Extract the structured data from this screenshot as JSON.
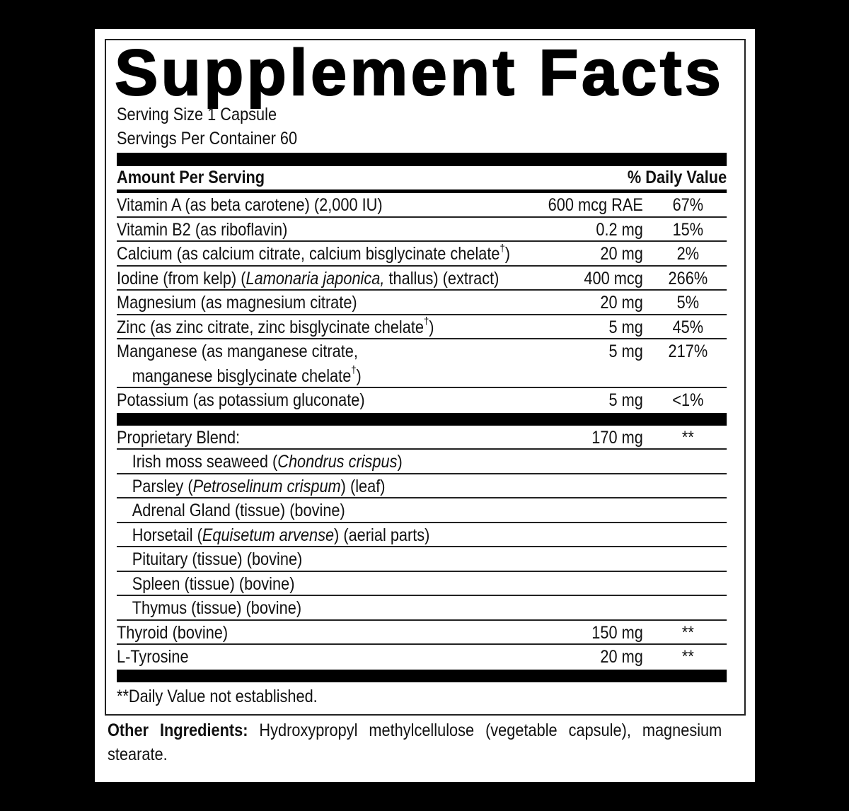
{
  "header": {
    "title": "Supplement Facts",
    "serving_size": "Serving Size 1 Capsule",
    "servings_per_container": "Servings Per Container 60"
  },
  "table": {
    "columns": [
      "Amount Per Serving",
      "% Daily Value"
    ],
    "groups": [
      [
        {
          "name": [
            [
              "Vitamin A (as beta carotene) (2,000 IU)"
            ]
          ],
          "amount": "600 mcg RAE",
          "daily_value": "67%"
        },
        {
          "name": [
            [
              "Vitamin B2 (as riboflavin)"
            ]
          ],
          "amount": "0.2 mg",
          "daily_value": "15%"
        },
        {
          "name": [
            [
              "Calcium (as calcium citrate, calcium bisglycinate chelate",
              {
                "text": "†",
                "style": "sup"
              },
              ")"
            ]
          ],
          "amount": "20 mg",
          "daily_value": "2%"
        },
        {
          "name": [
            [
              "Iodine (from kelp) (",
              {
                "text": "Lamonaria japonica,",
                "style": "italic"
              },
              " thallus) (extract)"
            ]
          ],
          "amount": "400 mcg",
          "daily_value": "266%"
        },
        {
          "name": [
            [
              "Magnesium (as magnesium citrate)"
            ]
          ],
          "amount": "20 mg",
          "daily_value": "5%"
        },
        {
          "name": [
            [
              "Zinc (as zinc citrate, zinc bisglycinate chelate",
              {
                "text": "†",
                "style": "sup"
              },
              ")"
            ]
          ],
          "amount": "5 mg",
          "daily_value": "45%"
        },
        {
          "name": [
            [
              "Manganese (as manganese citrate,"
            ],
            [
              "manganese bisglycinate chelate",
              {
                "text": "†",
                "style": "sup"
              },
              ")"
            ]
          ],
          "amount": "5 mg",
          "daily_value": "217%"
        },
        {
          "name": [
            [
              "Potassium (as potassium gluconate)"
            ]
          ],
          "amount": "5 mg",
          "daily_value": "<1%"
        }
      ],
      [
        {
          "name": [
            [
              "Proprietary Blend:"
            ]
          ],
          "amount": "170 mg",
          "daily_value": "**"
        },
        {
          "name": [
            [
              "Irish moss seaweed (",
              {
                "text": "Chondrus crispus",
                "style": "italic"
              },
              ")"
            ]
          ],
          "indent": true
        },
        {
          "name": [
            [
              "Parsley (",
              {
                "text": "Petroselinum crispum",
                "style": "italic"
              },
              ") (leaf)"
            ]
          ],
          "indent": true
        },
        {
          "name": [
            [
              "Adrenal Gland (tissue) (bovine)"
            ]
          ],
          "indent": true
        },
        {
          "name": [
            [
              "Horsetail (",
              {
                "text": "Equisetum arvense",
                "style": "italic"
              },
              ") (aerial parts)"
            ]
          ],
          "indent": true
        },
        {
          "name": [
            [
              "Pituitary (tissue) (bovine)"
            ]
          ],
          "indent": true
        },
        {
          "name": [
            [
              "Spleen (tissue) (bovine)"
            ]
          ],
          "indent": true
        },
        {
          "name": [
            [
              "Thymus (tissue) (bovine)"
            ]
          ],
          "indent": true
        },
        {
          "name": [
            [
              "Thyroid (bovine)"
            ]
          ],
          "amount": "150 mg",
          "daily_value": "**"
        },
        {
          "name": [
            [
              "L-Tyrosine"
            ]
          ],
          "amount": "20 mg",
          "daily_value": "**"
        }
      ]
    ],
    "footnote": "**Daily Value not established."
  },
  "other_ingredients": {
    "label": "Other Ingredients:",
    "text": "Hydroxypropyl methylcellulose (vegetable capsule), magnesium stearate."
  }
}
